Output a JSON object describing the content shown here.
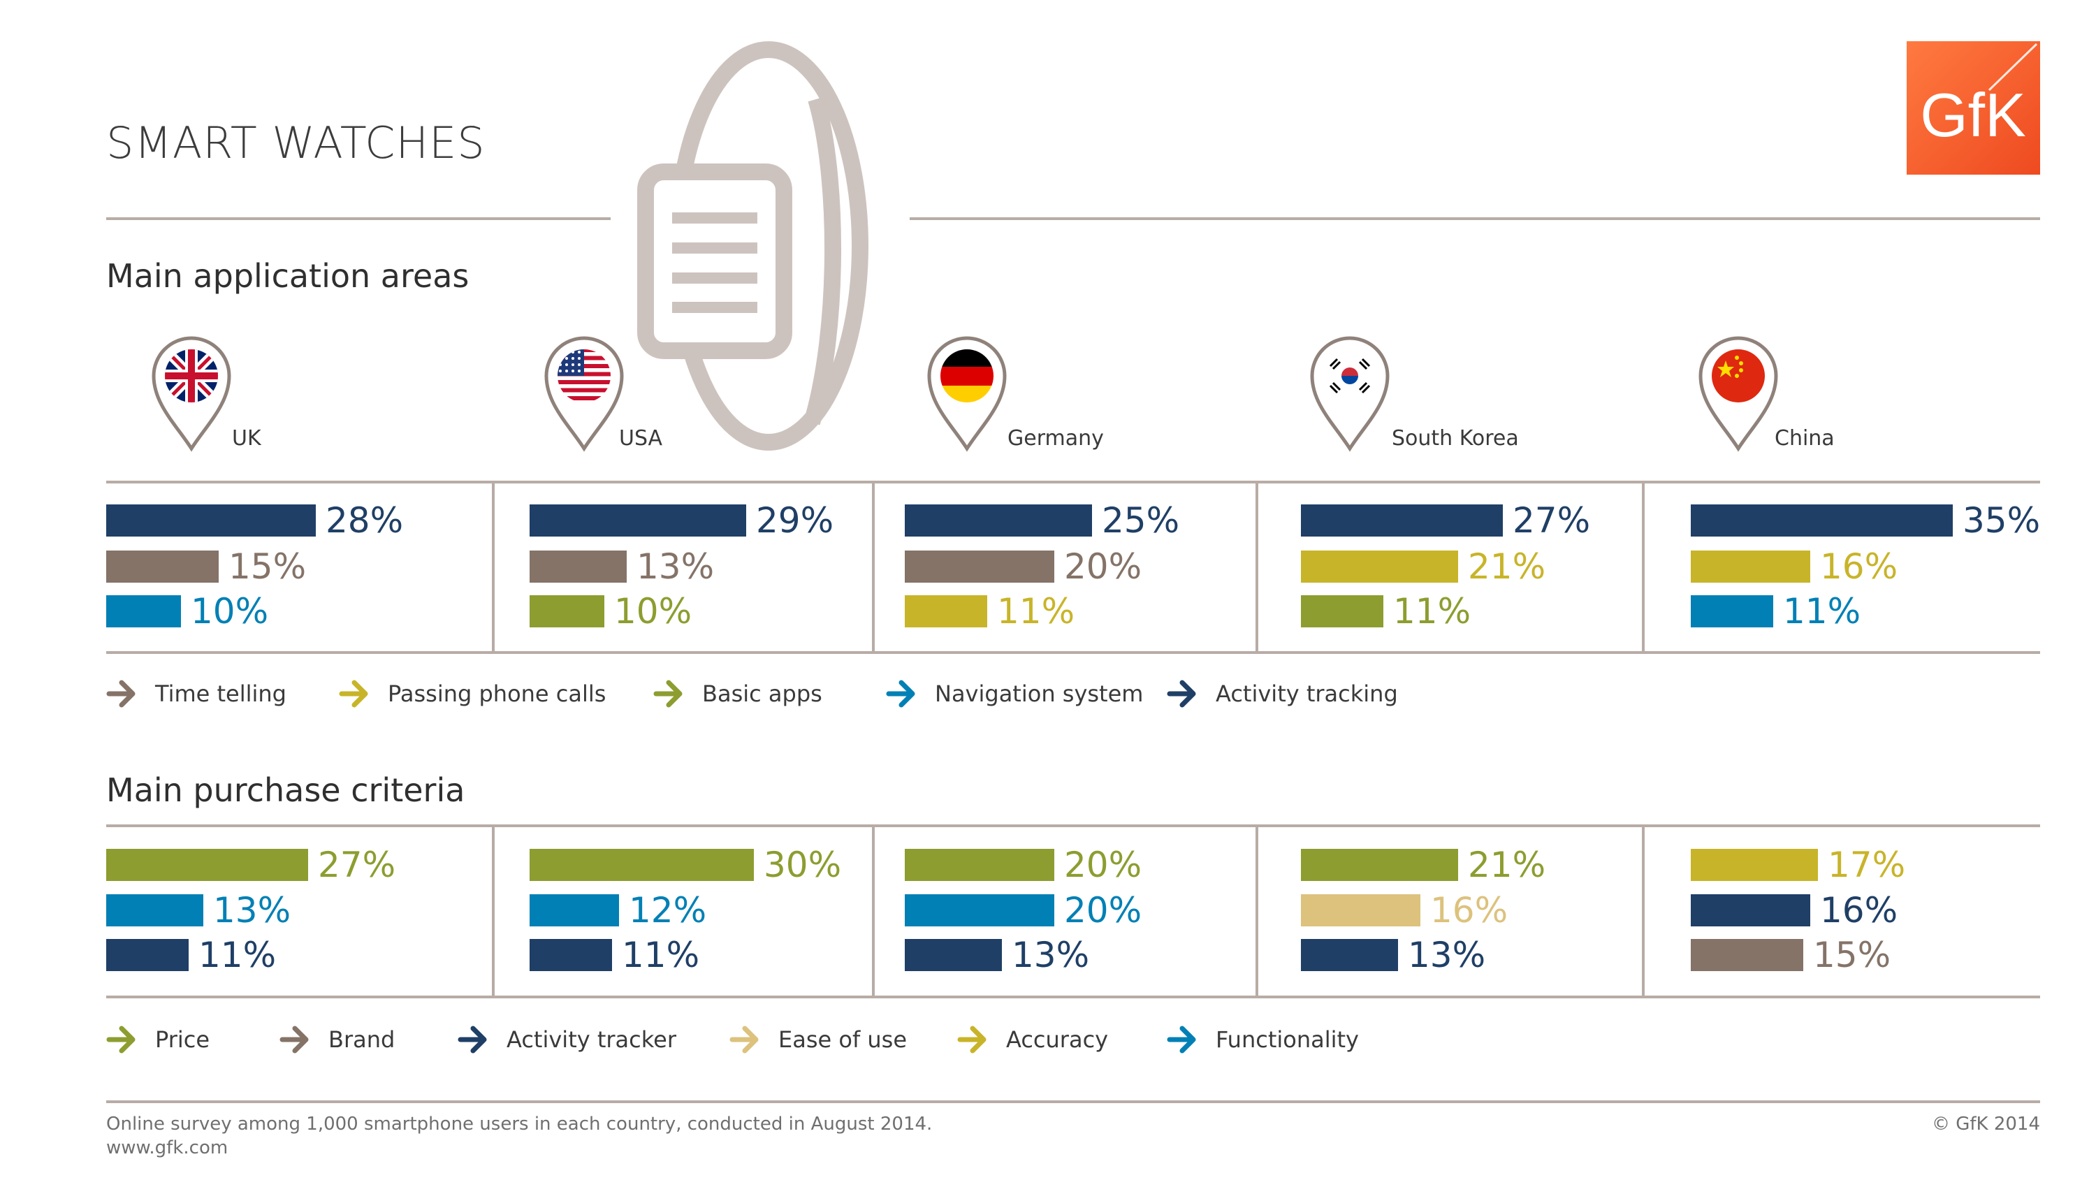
{
  "title": "SMART WATCHES",
  "logo_text": "GfK",
  "sections": {
    "application": {
      "title": "Main application areas"
    },
    "purchase": {
      "title": "Main purchase criteria"
    }
  },
  "countries": [
    {
      "name": "UK",
      "flag": "uk-flag"
    },
    {
      "name": "USA",
      "flag": "usa-flag"
    },
    {
      "name": "Germany",
      "flag": "germany-flag"
    },
    {
      "name": "South Korea",
      "flag": "south-korea-flag"
    },
    {
      "name": "China",
      "flag": "china-flag"
    }
  ],
  "colors": {
    "Time telling": "#857368",
    "Passing phone calls": "#c8b429",
    "Basic apps": "#8d9d30",
    "Navigation system": "#0080b5",
    "Activity tracking": "#1f3f66",
    "Price": "#8d9d30",
    "Brand": "#857368",
    "Activity tracker": "#1f3f66",
    "Ease of use": "#dcc27d",
    "Accuracy": "#c8b429",
    "Functionality": "#0080b5"
  },
  "chart_data": [
    {
      "type": "bar",
      "title": "Main application areas",
      "categories": [
        "UK",
        "USA",
        "Germany",
        "South Korea",
        "China"
      ],
      "legend": [
        "Time telling",
        "Passing phone calls",
        "Basic apps",
        "Navigation system",
        "Activity tracking"
      ],
      "groups": [
        {
          "country": "UK",
          "bars": [
            {
              "label": "Activity tracking",
              "value": 28,
              "text": "28%"
            },
            {
              "label": "Time telling",
              "value": 15,
              "text": "15%"
            },
            {
              "label": "Navigation system",
              "value": 10,
              "text": "10%"
            }
          ]
        },
        {
          "country": "USA",
          "bars": [
            {
              "label": "Activity tracking",
              "value": 29,
              "text": "29%"
            },
            {
              "label": "Time telling",
              "value": 13,
              "text": "13%"
            },
            {
              "label": "Basic apps",
              "value": 10,
              "text": "10%"
            }
          ]
        },
        {
          "country": "Germany",
          "bars": [
            {
              "label": "Activity tracking",
              "value": 25,
              "text": "25%"
            },
            {
              "label": "Time telling",
              "value": 20,
              "text": "20%"
            },
            {
              "label": "Passing phone calls",
              "value": 11,
              "text": "11%"
            }
          ]
        },
        {
          "country": "South Korea",
          "bars": [
            {
              "label": "Activity tracking",
              "value": 27,
              "text": "27%"
            },
            {
              "label": "Passing phone calls",
              "value": 21,
              "text": "21%"
            },
            {
              "label": "Basic apps",
              "value": 11,
              "text": "11%"
            }
          ]
        },
        {
          "country": "China",
          "bars": [
            {
              "label": "Activity tracking",
              "value": 35,
              "text": "35%"
            },
            {
              "label": "Passing phone calls",
              "value": 16,
              "text": "16%"
            },
            {
              "label": "Navigation system",
              "value": 11,
              "text": "11%"
            }
          ]
        }
      ]
    },
    {
      "type": "bar",
      "title": "Main purchase criteria",
      "categories": [
        "UK",
        "USA",
        "Germany",
        "South Korea",
        "China"
      ],
      "legend": [
        "Price",
        "Brand",
        "Activity tracker",
        "Ease of use",
        "Accuracy",
        "Functionality"
      ],
      "groups": [
        {
          "country": "UK",
          "bars": [
            {
              "label": "Price",
              "value": 27,
              "text": "27%"
            },
            {
              "label": "Functionality",
              "value": 13,
              "text": "13%"
            },
            {
              "label": "Activity tracker",
              "value": 11,
              "text": "11%"
            }
          ]
        },
        {
          "country": "USA",
          "bars": [
            {
              "label": "Price",
              "value": 30,
              "text": "30%"
            },
            {
              "label": "Functionality",
              "value": 12,
              "text": "12%"
            },
            {
              "label": "Activity tracker",
              "value": 11,
              "text": "11%"
            }
          ]
        },
        {
          "country": "Germany",
          "bars": [
            {
              "label": "Price",
              "value": 20,
              "text": "20%"
            },
            {
              "label": "Functionality",
              "value": 20,
              "text": "20%"
            },
            {
              "label": "Activity tracker",
              "value": 13,
              "text": "13%"
            }
          ]
        },
        {
          "country": "South Korea",
          "bars": [
            {
              "label": "Price",
              "value": 21,
              "text": "21%"
            },
            {
              "label": "Ease of use",
              "value": 16,
              "text": "16%"
            },
            {
              "label": "Activity tracker",
              "value": 13,
              "text": "13%"
            }
          ]
        },
        {
          "country": "China",
          "bars": [
            {
              "label": "Accuracy",
              "value": 17,
              "text": "17%"
            },
            {
              "label": "Activity tracker",
              "value": 16,
              "text": "16%"
            },
            {
              "label": "Brand",
              "value": 15,
              "text": "15%"
            }
          ]
        }
      ]
    }
  ],
  "footer": {
    "note": "Online survey among 1,000 smartphone users in each country, conducted in August 2014.",
    "url": "www.gfk.com",
    "copyright": "© GfK 2014"
  }
}
